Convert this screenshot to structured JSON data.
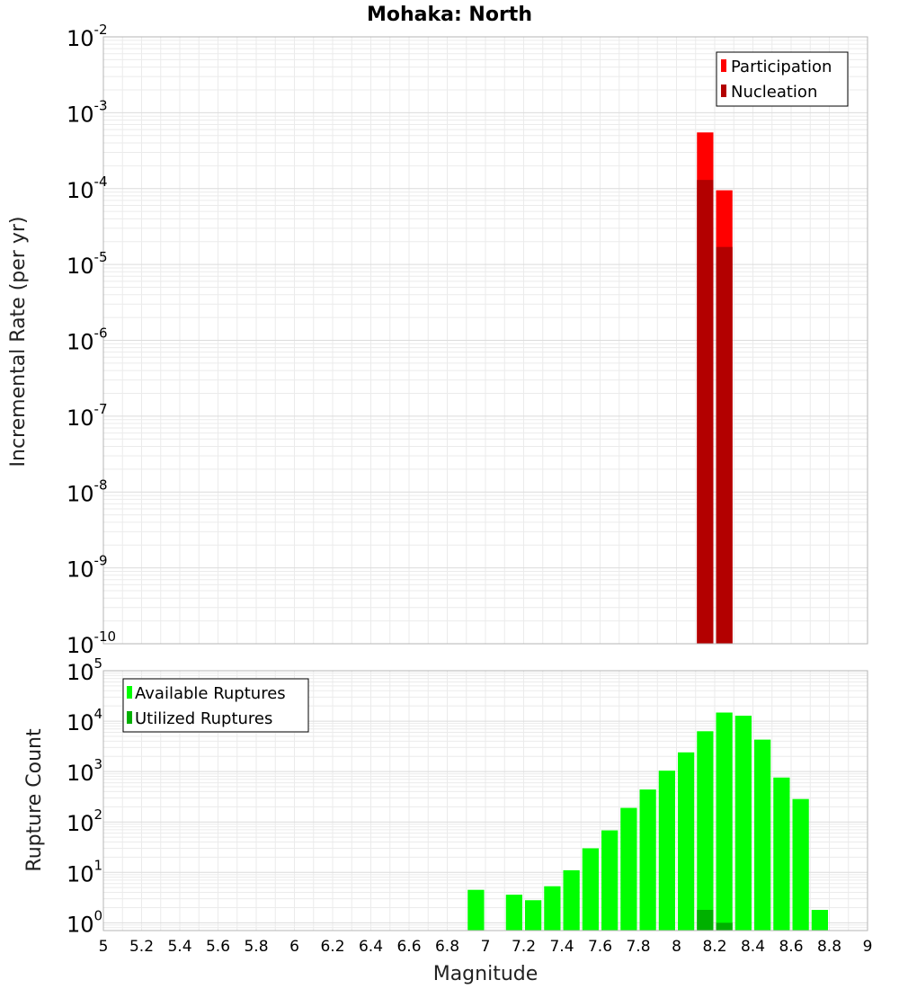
{
  "title": "Mohaka: North",
  "colors": {
    "participation": "#ff0000",
    "nucleation": "#b30000",
    "available": "#00ff00",
    "utilized": "#00b000",
    "grid": "#ebebeb",
    "frame": "#b4b4b4"
  },
  "chart_data": [
    {
      "type": "bar",
      "panel": "top",
      "ylabel": "Incremental Rate (per yr)",
      "xlim": [
        5,
        9
      ],
      "ylim": [
        1e-10,
        0.01
      ],
      "yscale": "log",
      "grid": true,
      "legend_position": "top-right",
      "y_ticks": [
        {
          "base": "10",
          "exp": "-2",
          "value": 0.01
        },
        {
          "base": "10",
          "exp": "-3",
          "value": 0.001
        },
        {
          "base": "10",
          "exp": "-4",
          "value": 0.0001
        },
        {
          "base": "10",
          "exp": "-5",
          "value": 1e-05
        },
        {
          "base": "10",
          "exp": "-6",
          "value": 1e-06
        },
        {
          "base": "10",
          "exp": "-7",
          "value": 1e-07
        },
        {
          "base": "10",
          "exp": "-8",
          "value": 1e-08
        },
        {
          "base": "10",
          "exp": "-9",
          "value": 1e-09
        },
        {
          "base": "10",
          "exp": "-10",
          "value": 1e-10
        }
      ],
      "series": [
        {
          "name": "Participation",
          "color_key": "participation",
          "x": [
            8.15,
            8.25
          ],
          "values": [
            0.00055,
            9.5e-05
          ]
        },
        {
          "name": "Nucleation",
          "color_key": "nucleation",
          "x": [
            8.15,
            8.25
          ],
          "values": [
            0.00013,
            1.7e-05
          ]
        }
      ]
    },
    {
      "type": "bar",
      "panel": "bottom",
      "xlabel": "Magnitude",
      "ylabel": "Rupture Count",
      "xlim": [
        5,
        9
      ],
      "ylim": [
        0.7,
        100000
      ],
      "yscale": "log",
      "grid": true,
      "legend_position": "top-left",
      "y_ticks": [
        {
          "base": "10",
          "exp": "5",
          "value": 100000
        },
        {
          "base": "10",
          "exp": "4",
          "value": 10000
        },
        {
          "base": "10",
          "exp": "3",
          "value": 1000
        },
        {
          "base": "10",
          "exp": "2",
          "value": 100
        },
        {
          "base": "10",
          "exp": "1",
          "value": 10
        },
        {
          "base": "10",
          "exp": "0",
          "value": 1
        }
      ],
      "x_ticks": [
        "5",
        "5.2",
        "5.4",
        "5.6",
        "5.8",
        "6",
        "6.2",
        "6.4",
        "6.6",
        "6.8",
        "7",
        "7.2",
        "7.4",
        "7.6",
        "7.8",
        "8",
        "8.2",
        "8.4",
        "8.6",
        "8.8",
        "9"
      ],
      "series": [
        {
          "name": "Available Ruptures",
          "color_key": "available",
          "x": [
            6.95,
            7.15,
            7.25,
            7.35,
            7.45,
            7.55,
            7.65,
            7.75,
            7.85,
            7.95,
            8.05,
            8.15,
            8.25,
            8.35,
            8.45,
            8.55,
            8.65,
            8.75
          ],
          "values": [
            4.5,
            3.6,
            2.8,
            5.3,
            11,
            30,
            68,
            190,
            440,
            1040,
            2400,
            6300,
            14800,
            12800,
            4300,
            760,
            285,
            1.8
          ]
        },
        {
          "name": "Utilized Ruptures",
          "color_key": "utilized",
          "x": [
            8.15,
            8.25
          ],
          "values": [
            1.8,
            1.0
          ]
        }
      ]
    }
  ]
}
